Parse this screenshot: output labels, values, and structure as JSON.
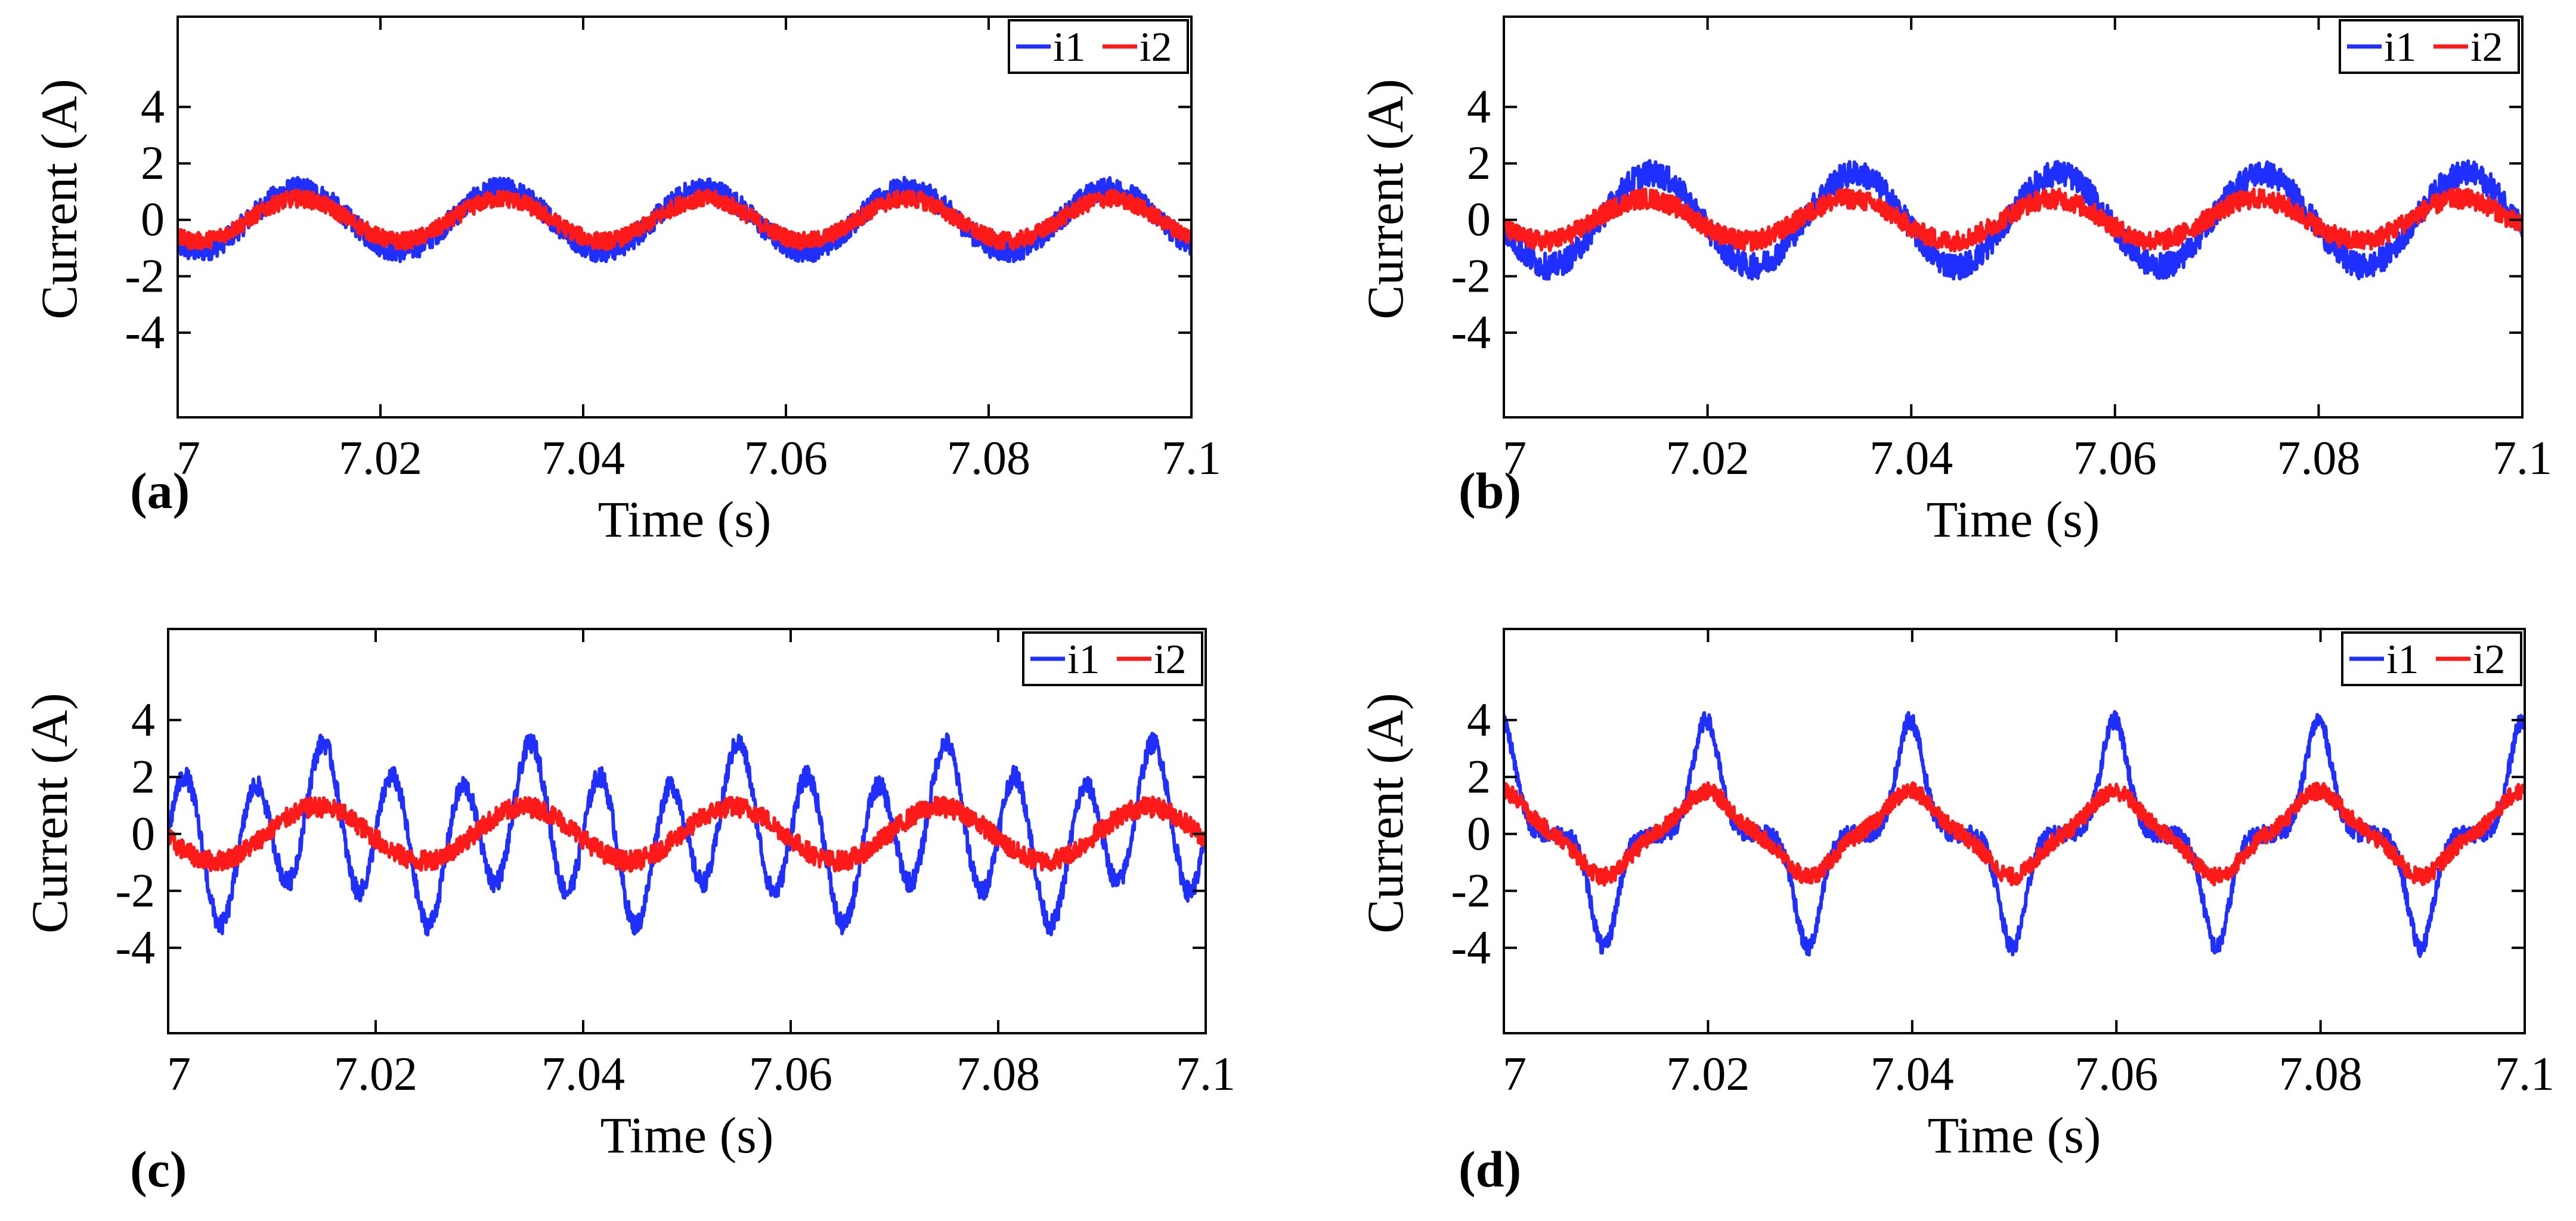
{
  "figure": {
    "panel_labels": [
      "(a)",
      "(b)",
      "(c)",
      "(d)"
    ],
    "colors": {
      "i1": "#1f2fff",
      "i2": "#ff1a1a",
      "axis": "#000000"
    }
  },
  "chart_data": [
    {
      "type": "line",
      "panel": "(a)",
      "xlabel": "Time (s)",
      "ylabel": "Current (A)",
      "xlim": [
        7,
        7.1
      ],
      "ylim": [
        -7,
        7.2
      ],
      "xticks": [
        "7",
        "7.02",
        "7.04",
        "7.06",
        "7.08",
        "7.1"
      ],
      "yticks": [
        "4",
        "2",
        "0",
        "-2",
        "-4"
      ],
      "legend": [
        "i1",
        "i2"
      ],
      "legend_position": "top-right",
      "series": [
        {
          "name": "i1",
          "frequency_hz": 50,
          "waveform": [
            {
              "harmonic": 1,
              "amplitude": 1.1,
              "phase_deg": -125
            }
          ],
          "noise_band": 0.4
        },
        {
          "name": "i2",
          "frequency_hz": 50,
          "waveform": [
            {
              "harmonic": 1,
              "amplitude": 0.75,
              "phase_deg": -125
            }
          ],
          "noise_band": 0.3
        }
      ]
    },
    {
      "type": "line",
      "panel": "(b)",
      "xlabel": "Time (s)",
      "ylabel": "Current (A)",
      "xlim": [
        7,
        7.1
      ],
      "ylim": [
        -7,
        7.2
      ],
      "xticks": [
        "7",
        "7.02",
        "7.04",
        "7.06",
        "7.08",
        "7.1"
      ],
      "yticks": [
        "4",
        "2",
        "0",
        "-2",
        "-4"
      ],
      "legend": [
        "i1",
        "i2"
      ],
      "legend_position": "top-right",
      "series": [
        {
          "name": "i1",
          "frequency_hz": 50,
          "waveform": [
            {
              "harmonic": 1,
              "amplitude": 1.65,
              "phase_deg": -170
            }
          ],
          "noise_band": 0.45
        },
        {
          "name": "i2",
          "frequency_hz": 50,
          "waveform": [
            {
              "harmonic": 1,
              "amplitude": 0.75,
              "phase_deg": -160
            }
          ],
          "noise_band": 0.35
        }
      ]
    },
    {
      "type": "line",
      "panel": "(c)",
      "xlabel": "Time (s)",
      "ylabel": "Current (A)",
      "xlim": [
        7,
        7.1
      ],
      "ylim": [
        -7,
        7.2
      ],
      "xticks": [
        "7",
        "7.02",
        "7.04",
        "7.06",
        "7.08",
        "7.1"
      ],
      "yticks": [
        "4",
        "2",
        "0",
        "-2",
        "-4"
      ],
      "legend": [
        "i1",
        "i2"
      ],
      "legend_position": "top-right",
      "series": [
        {
          "name": "i1",
          "frequency_hz": 50,
          "waveform": [
            {
              "harmonic": 1,
              "amplitude": 0.9,
              "phase_deg": 180
            },
            {
              "harmonic": 2,
              "amplitude": 0.2,
              "phase_deg": 0
            },
            {
              "harmonic": 3,
              "amplitude": 2.3,
              "phase_deg": 0
            }
          ],
          "noise_band": 0.35
        },
        {
          "name": "i2",
          "frequency_hz": 50,
          "waveform": [
            {
              "harmonic": 1,
              "amplitude": 0.95,
              "phase_deg": 190
            }
          ],
          "noise_band": 0.35
        }
      ]
    },
    {
      "type": "line",
      "panel": "(d)",
      "xlabel": "Time (s)",
      "ylabel": "Current (A)",
      "xlim": [
        7,
        7.1
      ],
      "ylim": [
        -7,
        7.2
      ],
      "xticks": [
        "7",
        "7.02",
        "7.04",
        "7.06",
        "7.08",
        "7.1"
      ],
      "yticks": [
        "4",
        "2",
        "0",
        "-2",
        "-4"
      ],
      "legend": [
        "i1",
        "i2"
      ],
      "legend_position": "top-right",
      "series": [
        {
          "name": "i1",
          "frequency_hz": 50,
          "pulse_train": {
            "peak": 4.0,
            "trough": -4.0,
            "pulse_width_s": 0.0018,
            "first_peak_s": 7.0198,
            "first_trough_s": 7.0098
          },
          "noise_band": 0.3
        },
        {
          "name": "i2",
          "frequency_hz": 50,
          "pulse_train": {
            "peak": 1.5,
            "trough": -1.5,
            "pulse_width_s": 0.0032,
            "first_peak_s": 7.0198,
            "first_trough_s": 7.0098
          },
          "noise_band": 0.3
        }
      ]
    }
  ]
}
